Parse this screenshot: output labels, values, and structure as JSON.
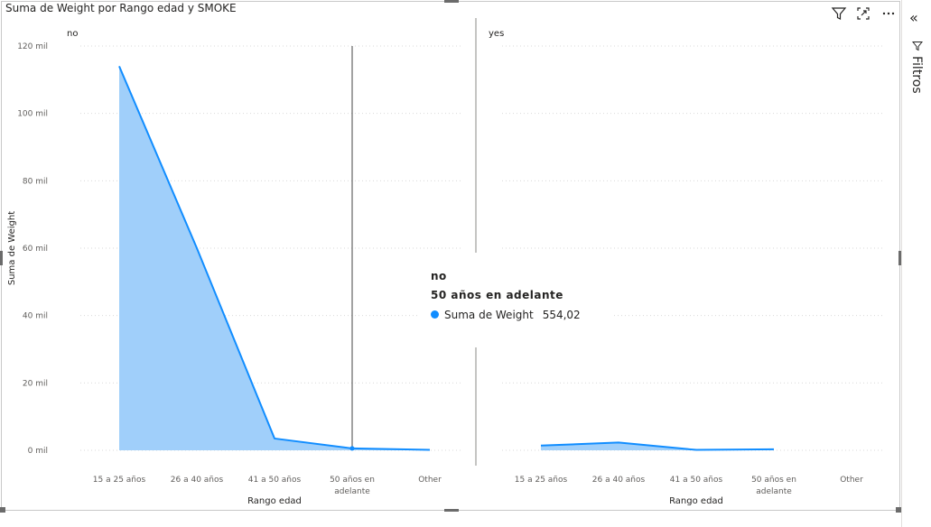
{
  "visual": {
    "title": "Suma de Weight por Rango edad y SMOKE"
  },
  "header_icons": [
    "filter-icon",
    "focus-mode-icon",
    "more-options-icon"
  ],
  "filters_pane": {
    "label": "Filtros",
    "collapse_glyph": "«"
  },
  "tooltip": {
    "line1": "no",
    "line2": "50 años en adelante",
    "series_label": "Suma de Weight",
    "value": "554,02",
    "dot_color": "#118dff"
  },
  "colors": {
    "line": "#118dff",
    "area": "#a0cffa",
    "grid": "#e6e6e6",
    "text": "#605e5c",
    "title": "#252423"
  },
  "chart_data": {
    "type": "area",
    "title": "Suma de Weight por Rango edad y SMOKE",
    "xlabel": "Rango edad",
    "ylabel": "Suma de Weight",
    "ylim": [
      0,
      120000
    ],
    "yticks": [
      0,
      20000,
      40000,
      60000,
      80000,
      100000,
      120000
    ],
    "ytick_labels": [
      "0 mil",
      "20 mil",
      "40 mil",
      "60 mil",
      "80 mil",
      "100 mil",
      "120 mil"
    ],
    "categories": [
      "15 a 25 años",
      "26 a 40 años",
      "41 a 50 años",
      "50 años en adelante",
      "Other"
    ],
    "grid": true,
    "panels": [
      {
        "label": "no",
        "values": [
          114000,
          60000,
          3500,
          554.02,
          150
        ]
      },
      {
        "label": "yes",
        "values": [
          1400,
          2300,
          120,
          300,
          null
        ]
      }
    ]
  }
}
